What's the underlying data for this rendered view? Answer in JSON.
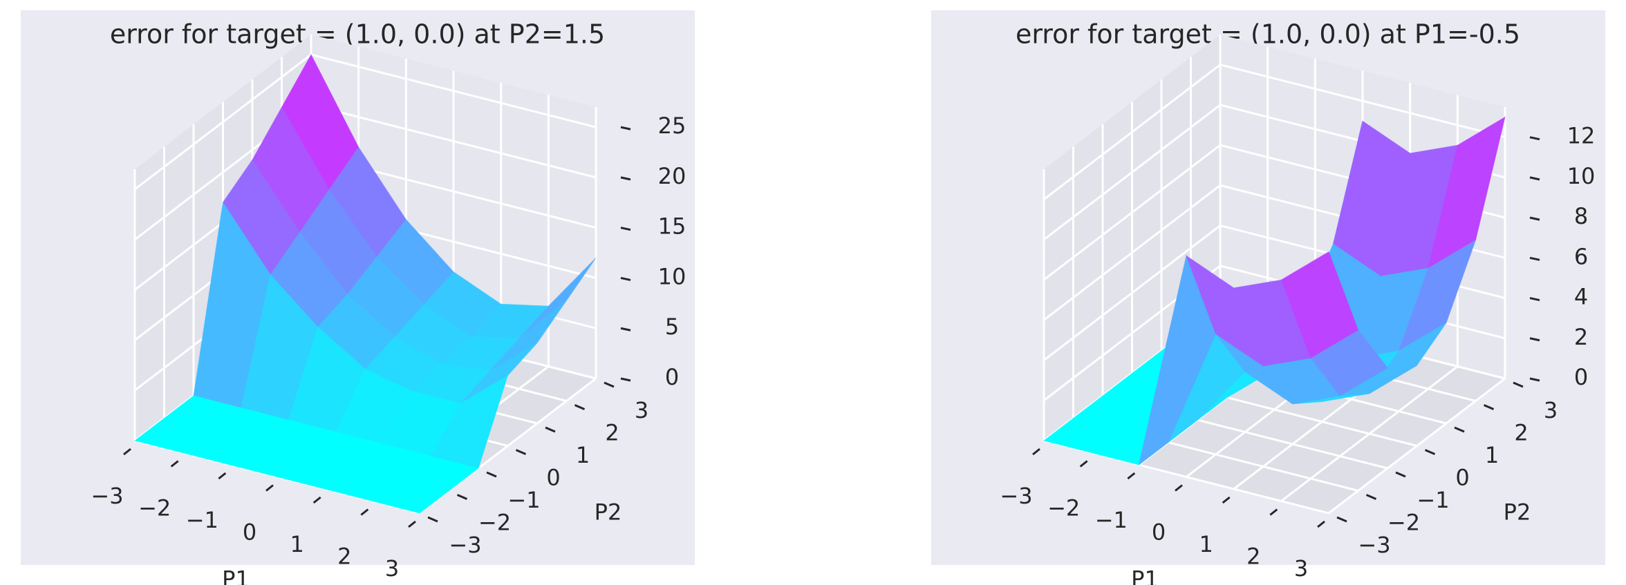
{
  "chart_data": [
    {
      "type": "surface",
      "title": "error for target = (1.0, 0.0) at P2=1.5",
      "x_label": "P1",
      "y_label": "P2",
      "colormap": "cool",
      "x": [
        -3,
        -2,
        -1,
        0,
        1,
        2,
        3
      ],
      "y": [
        -3,
        -2,
        -1,
        0,
        1,
        2,
        3
      ],
      "z": [
        [
          0,
          0,
          0,
          0,
          0,
          0,
          0
        ],
        [
          0,
          0,
          0,
          0,
          0,
          0,
          0
        ],
        [
          0,
          0,
          0,
          0,
          0,
          0,
          0
        ],
        [
          17,
          11,
          7,
          4,
          3,
          3,
          7
        ],
        [
          19,
          13,
          8,
          5,
          3.5,
          4,
          8
        ],
        [
          22,
          15,
          9.5,
          6,
          4,
          5,
          10
        ],
        [
          25,
          17,
          11,
          7,
          5,
          6,
          12
        ]
      ],
      "xlim": [
        -3,
        3
      ],
      "ylim": [
        -3,
        3
      ],
      "zlim": [
        0,
        27
      ],
      "xticks": [
        {
          "value": -3,
          "label": "−3"
        },
        {
          "value": -2,
          "label": "−2"
        },
        {
          "value": -1,
          "label": "−1"
        },
        0,
        1,
        2,
        3
      ],
      "yticks": [
        {
          "value": -3,
          "label": "−3"
        },
        {
          "value": -2,
          "label": "−2"
        },
        {
          "value": -1,
          "label": "−1"
        },
        0,
        1,
        2,
        3
      ],
      "zticks": [
        0,
        5,
        10,
        15,
        20,
        25
      ]
    },
    {
      "type": "surface",
      "title": "error for target = (1.0, 0.0) at P1=-0.5",
      "x_label": "P1",
      "y_label": "P2",
      "colormap": "cool",
      "x": [
        -3,
        -2,
        -1,
        0,
        1,
        2,
        3
      ],
      "y": [
        -3,
        -2,
        -1,
        0,
        1,
        2,
        3
      ],
      "z": [
        [
          0,
          0,
          0,
          11,
          10,
          11,
          13
        ],
        [
          0,
          0,
          0,
          6,
          5,
          6,
          8
        ],
        [
          0,
          0,
          0,
          3,
          2,
          3,
          5
        ],
        [
          0,
          0,
          0,
          2,
          1,
          2,
          4
        ],
        [
          0,
          0,
          0,
          3,
          2,
          3,
          5
        ],
        [
          0,
          0,
          0,
          6,
          5,
          6,
          8
        ],
        [
          0,
          0,
          0,
          11,
          10,
          11,
          13
        ]
      ],
      "xlim": [
        -3,
        3
      ],
      "ylim": [
        -3,
        3
      ],
      "zlim": [
        0,
        13.5
      ],
      "xticks": [
        {
          "value": -3,
          "label": "−3"
        },
        {
          "value": -2,
          "label": "−2"
        },
        {
          "value": -1,
          "label": "−1"
        },
        0,
        1,
        2,
        3
      ],
      "yticks": [
        {
          "value": -3,
          "label": "−3"
        },
        {
          "value": -2,
          "label": "−2"
        },
        {
          "value": -1,
          "label": "−1"
        },
        0,
        1,
        2,
        3
      ],
      "zticks": [
        0,
        2,
        4,
        6,
        8,
        10,
        12
      ]
    }
  ]
}
